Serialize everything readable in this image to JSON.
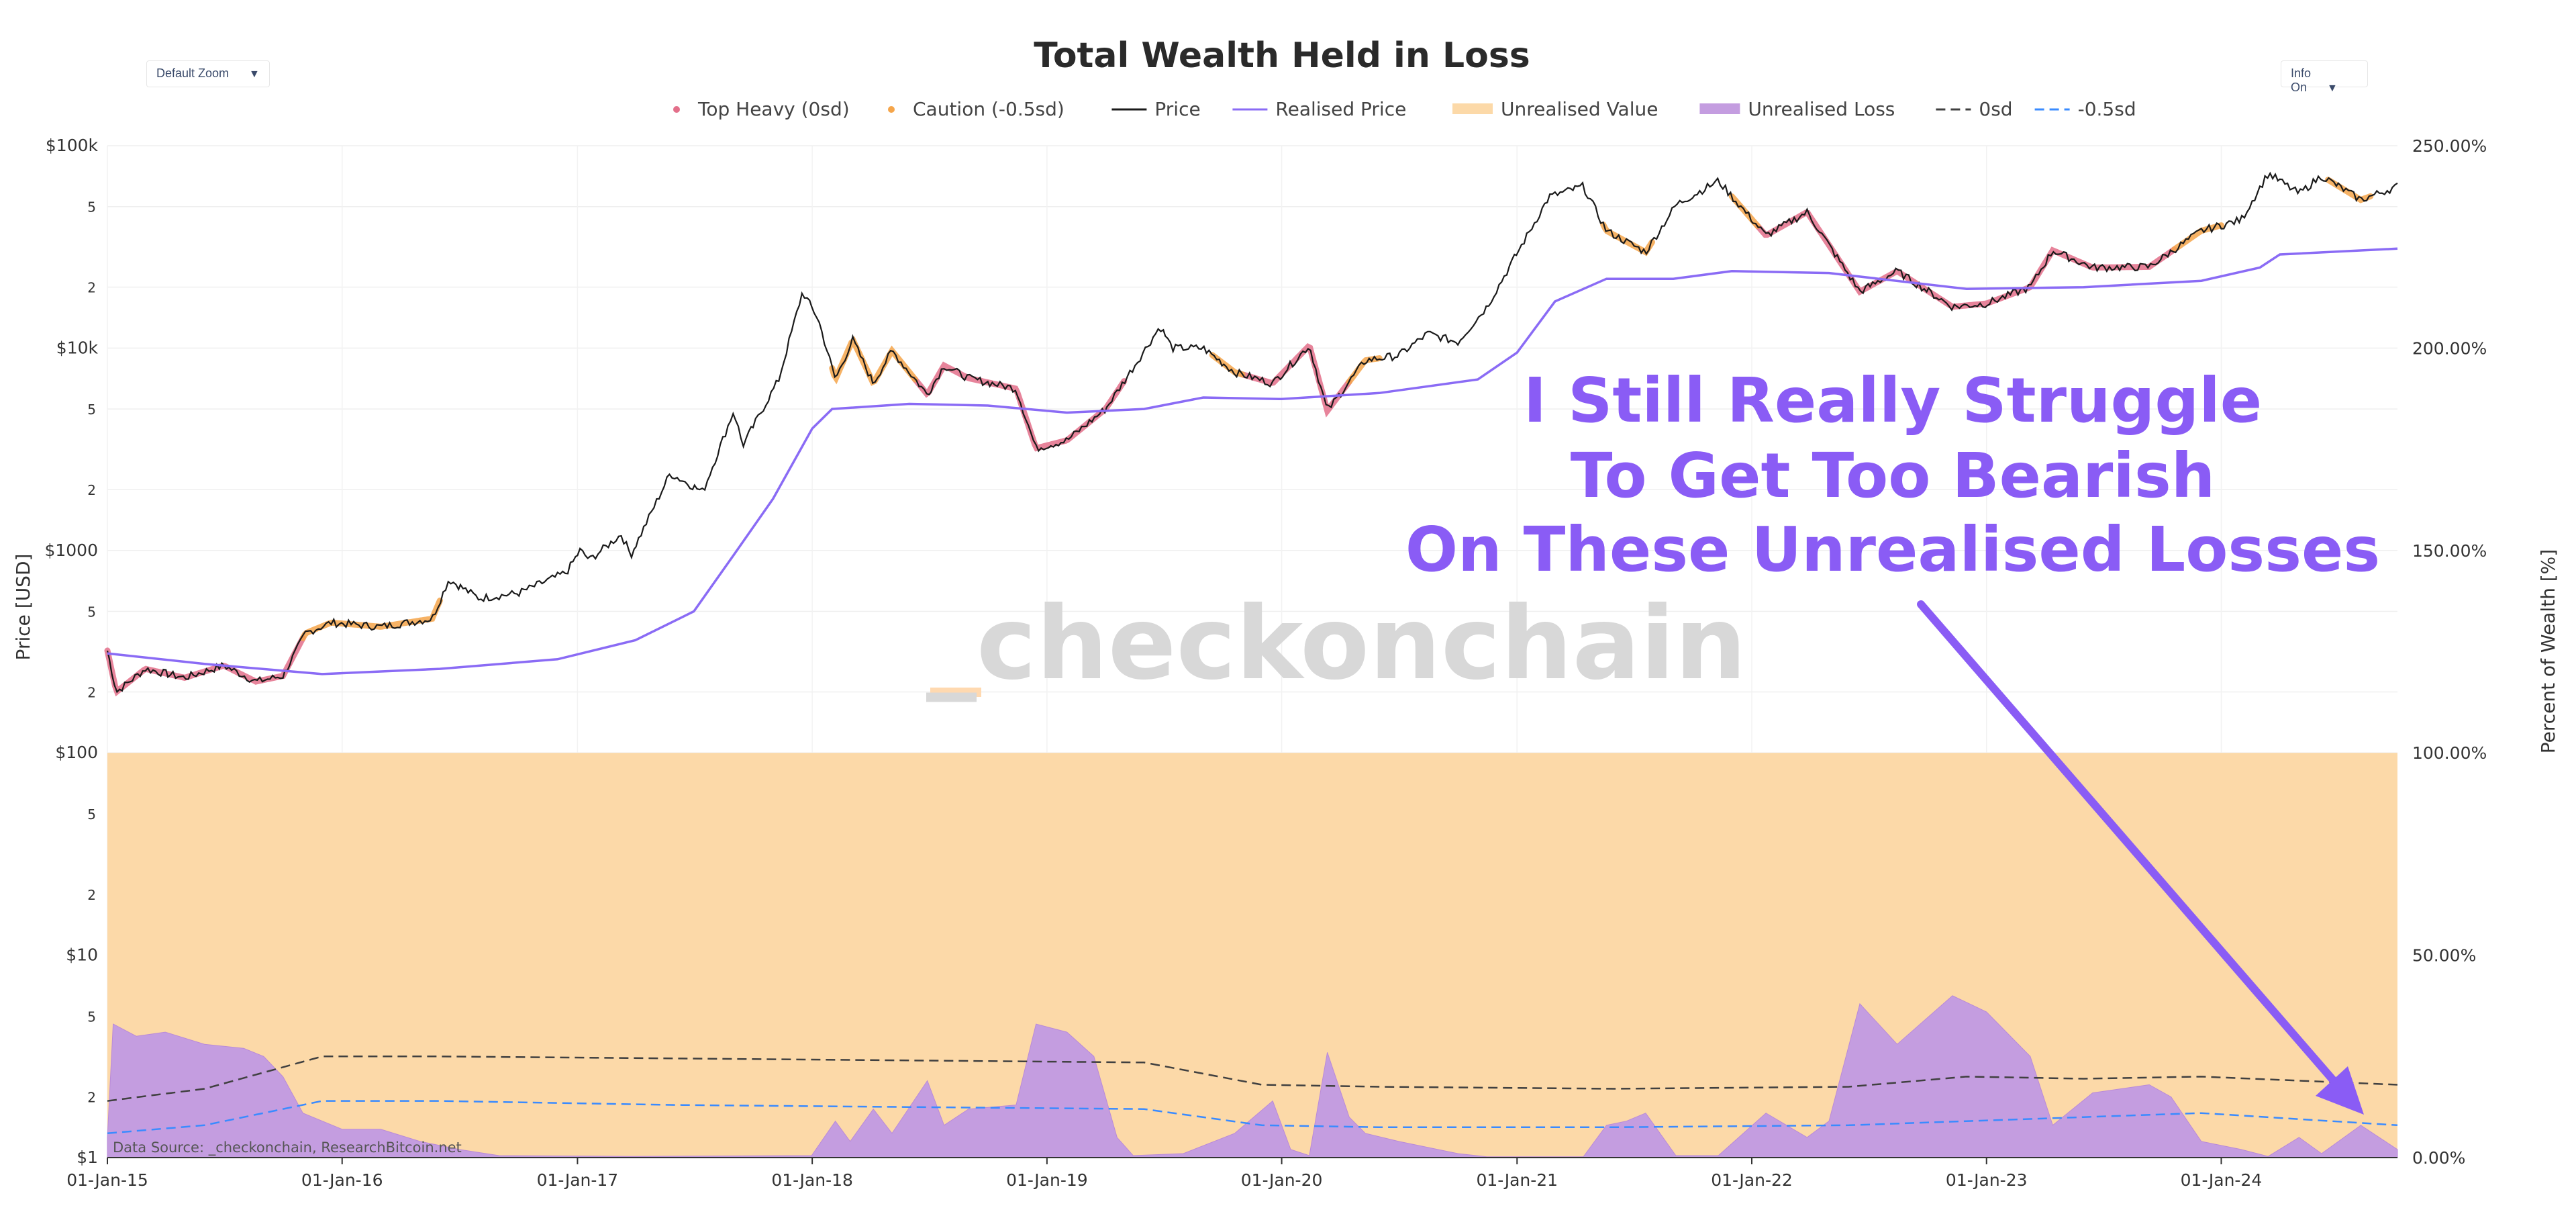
{
  "header": {
    "zoom_select": "Default Zoom",
    "info_select": "Info On"
  },
  "watermark": "_checkonchain",
  "annotation": {
    "lines": [
      "I Still Really Struggle",
      "To Get Too Bearish",
      "On These Unrealised Losses"
    ]
  },
  "source_note": "Data Source: _checkonchain, ResearchBitcoin.net",
  "colors": {
    "price": "#1a1a1a",
    "realised_price": "#8a6bf5",
    "unrealised_value": "#fcd9a8",
    "unrealised_loss": "#c49de0",
    "annotation": "#8a5cf5",
    "zero_sd": "#404040",
    "neg_half_sd": "#3a8bff",
    "top_heavy": "#e36f8a",
    "caution": "#f5a54a",
    "watermark": "#d8d8d8",
    "watermark_accent": "#ffd9b0"
  },
  "chart_data": {
    "type": "line",
    "title": "Total Wealth Held in Loss",
    "legend": {
      "position": "top-center",
      "entries": [
        {
          "label": "Top Heavy (0sd)",
          "style": "dot",
          "color": "#e36f8a"
        },
        {
          "label": "Caution (-0.5sd)",
          "style": "dot",
          "color": "#f5a54a"
        },
        {
          "label": "Price",
          "style": "line",
          "color": "#1a1a1a"
        },
        {
          "label": "Realised Price",
          "style": "line",
          "color": "#8a6bf5"
        },
        {
          "label": "Unrealised Value",
          "style": "band",
          "color": "#fcd9a8"
        },
        {
          "label": "Unrealised Loss",
          "style": "band",
          "color": "#c49de0"
        },
        {
          "label": "0sd",
          "style": "dash",
          "color": "#404040"
        },
        {
          "label": "-0.5sd",
          "style": "dash",
          "color": "#3a8bff"
        }
      ]
    },
    "x_ticks": [
      "01-Jan-15",
      "01-Jan-16",
      "01-Jan-17",
      "01-Jan-18",
      "01-Jan-19",
      "01-Jan-20",
      "01-Jan-21",
      "01-Jan-22",
      "01-Jan-23",
      "01-Jan-24"
    ],
    "x_range": [
      "2015-01-01",
      "2024-10-01"
    ],
    "y_left": {
      "label": "Price [USD]",
      "scale": "log",
      "range": [
        1,
        100000
      ],
      "ticks": [
        "$1",
        "2",
        "5",
        "$10",
        "2",
        "5",
        "$100",
        "2",
        "5",
        "$1000",
        "2",
        "5",
        "$10k",
        "2",
        "5",
        "$100k"
      ]
    },
    "y_right": {
      "label": "Percent of Wealth [%]",
      "range": [
        0,
        250
      ],
      "ticks": [
        "0.00%",
        "50.00%",
        "100.00%",
        "150.00%",
        "200.00%",
        "250.00%"
      ]
    },
    "grid": true,
    "series": [
      {
        "name": "Price",
        "axis": "left",
        "points": [
          [
            "2015-01-01",
            320
          ],
          [
            "2015-01-15",
            200
          ],
          [
            "2015-03-01",
            260
          ],
          [
            "2015-05-01",
            235
          ],
          [
            "2015-07-01",
            270
          ],
          [
            "2015-08-20",
            225
          ],
          [
            "2015-10-01",
            240
          ],
          [
            "2015-11-05",
            390
          ],
          [
            "2015-12-15",
            440
          ],
          [
            "2016-03-01",
            420
          ],
          [
            "2016-05-20",
            460
          ],
          [
            "2016-06-15",
            720
          ],
          [
            "2016-08-01",
            580
          ],
          [
            "2016-10-01",
            615
          ],
          [
            "2016-12-15",
            780
          ],
          [
            "2017-01-05",
            1000
          ],
          [
            "2017-01-20",
            900
          ],
          [
            "2017-03-10",
            1200
          ],
          [
            "2017-03-25",
            950
          ],
          [
            "2017-05-25",
            2400
          ],
          [
            "2017-07-15",
            1950
          ],
          [
            "2017-09-01",
            4900
          ],
          [
            "2017-09-15",
            3300
          ],
          [
            "2017-11-10",
            7000
          ],
          [
            "2017-12-17",
            19000
          ],
          [
            "2018-01-10",
            14000
          ],
          [
            "2018-02-06",
            7000
          ],
          [
            "2018-03-05",
            11000
          ],
          [
            "2018-04-06",
            6700
          ],
          [
            "2018-05-05",
            9700
          ],
          [
            "2018-06-29",
            5900
          ],
          [
            "2018-07-25",
            8200
          ],
          [
            "2018-09-01",
            7100
          ],
          [
            "2018-11-14",
            6300
          ],
          [
            "2018-12-15",
            3200
          ],
          [
            "2019-02-01",
            3500
          ],
          [
            "2019-04-02",
            5000
          ],
          [
            "2019-05-15",
            8000
          ],
          [
            "2019-06-26",
            12800
          ],
          [
            "2019-07-15",
            10000
          ],
          [
            "2019-09-01",
            10000
          ],
          [
            "2019-10-20",
            7600
          ],
          [
            "2019-12-18",
            6700
          ],
          [
            "2020-02-13",
            10300
          ],
          [
            "2020-03-12",
            4900
          ],
          [
            "2020-05-10",
            8700
          ],
          [
            "2020-07-01",
            9200
          ],
          [
            "2020-08-15",
            11800
          ],
          [
            "2020-10-01",
            10700
          ],
          [
            "2020-11-15",
            16000
          ],
          [
            "2020-12-31",
            29000
          ],
          [
            "2021-02-20",
            56000
          ],
          [
            "2021-04-14",
            63000
          ],
          [
            "2021-05-20",
            38000
          ],
          [
            "2021-07-20",
            29800
          ],
          [
            "2021-09-05",
            51000
          ],
          [
            "2021-11-10",
            67000
          ],
          [
            "2022-01-23",
            36000
          ],
          [
            "2022-03-28",
            47000
          ],
          [
            "2022-06-18",
            19000
          ],
          [
            "2022-08-15",
            24000
          ],
          [
            "2022-11-09",
            16000
          ],
          [
            "2023-01-01",
            16600
          ],
          [
            "2023-03-10",
            20000
          ],
          [
            "2023-04-14",
            30400
          ],
          [
            "2023-06-15",
            25000
          ],
          [
            "2023-09-11",
            25200
          ],
          [
            "2023-12-01",
            38000
          ],
          [
            "2024-02-01",
            43000
          ],
          [
            "2024-03-14",
            73000
          ],
          [
            "2024-05-01",
            58000
          ],
          [
            "2024-06-05",
            71000
          ],
          [
            "2024-08-05",
            54000
          ],
          [
            "2024-10-01",
            63000
          ]
        ]
      },
      {
        "name": "Realised Price",
        "axis": "left",
        "points": [
          [
            "2015-01-01",
            310
          ],
          [
            "2015-06-01",
            275
          ],
          [
            "2015-12-01",
            245
          ],
          [
            "2016-06-01",
            260
          ],
          [
            "2016-12-01",
            290
          ],
          [
            "2017-04-01",
            360
          ],
          [
            "2017-07-01",
            500
          ],
          [
            "2017-09-01",
            950
          ],
          [
            "2017-11-01",
            1800
          ],
          [
            "2018-01-01",
            4000
          ],
          [
            "2018-02-01",
            5000
          ],
          [
            "2018-06-01",
            5300
          ],
          [
            "2018-10-01",
            5200
          ],
          [
            "2019-02-01",
            4800
          ],
          [
            "2019-06-01",
            5000
          ],
          [
            "2019-09-01",
            5700
          ],
          [
            "2020-01-01",
            5600
          ],
          [
            "2020-06-01",
            6000
          ],
          [
            "2020-11-01",
            7000
          ],
          [
            "2021-01-01",
            9500
          ],
          [
            "2021-03-01",
            17000
          ],
          [
            "2021-05-20",
            22000
          ],
          [
            "2021-09-01",
            22000
          ],
          [
            "2021-12-01",
            24000
          ],
          [
            "2022-05-01",
            23500
          ],
          [
            "2022-12-01",
            19600
          ],
          [
            "2023-06-01",
            20000
          ],
          [
            "2023-12-01",
            21500
          ],
          [
            "2024-03-01",
            25000
          ],
          [
            "2024-04-01",
            29000
          ],
          [
            "2024-10-01",
            31000
          ]
        ]
      },
      {
        "name": "Unrealised Loss",
        "axis": "right",
        "points": [
          [
            "2015-01-01",
            5
          ],
          [
            "2015-01-10",
            33
          ],
          [
            "2015-02-15",
            30
          ],
          [
            "2015-04-01",
            31
          ],
          [
            "2015-06-01",
            28
          ],
          [
            "2015-08-01",
            27
          ],
          [
            "2015-09-01",
            25
          ],
          [
            "2015-10-01",
            20
          ],
          [
            "2015-11-01",
            11
          ],
          [
            "2016-01-01",
            7
          ],
          [
            "2016-03-01",
            7
          ],
          [
            "2016-05-01",
            4
          ],
          [
            "2016-07-01",
            2
          ],
          [
            "2016-09-01",
            0.5
          ],
          [
            "2017-03-25",
            0.3
          ],
          [
            "2017-12-31",
            0.5
          ],
          [
            "2018-02-06",
            9
          ],
          [
            "2018-03-01",
            4
          ],
          [
            "2018-04-06",
            12
          ],
          [
            "2018-05-05",
            6
          ],
          [
            "2018-06-29",
            19
          ],
          [
            "2018-07-25",
            8
          ],
          [
            "2018-09-01",
            12
          ],
          [
            "2018-11-14",
            13
          ],
          [
            "2018-12-15",
            33
          ],
          [
            "2019-02-01",
            31
          ],
          [
            "2019-03-15",
            25
          ],
          [
            "2019-04-20",
            5
          ],
          [
            "2019-05-15",
            0.5
          ],
          [
            "2019-08-01",
            1
          ],
          [
            "2019-10-20",
            6
          ],
          [
            "2019-12-18",
            14
          ],
          [
            "2020-01-15",
            2
          ],
          [
            "2020-02-13",
            0.5
          ],
          [
            "2020-03-12",
            26
          ],
          [
            "2020-04-15",
            10
          ],
          [
            "2020-05-10",
            6
          ],
          [
            "2020-07-01",
            4
          ],
          [
            "2020-10-01",
            1
          ],
          [
            "2020-11-15",
            0.2
          ],
          [
            "2021-04-14",
            0.2
          ],
          [
            "2021-05-20",
            8
          ],
          [
            "2021-06-20",
            9
          ],
          [
            "2021-07-20",
            11
          ],
          [
            "2021-09-05",
            0.5
          ],
          [
            "2021-11-10",
            0.5
          ],
          [
            "2022-01-23",
            11
          ],
          [
            "2022-03-28",
            5
          ],
          [
            "2022-05-01",
            9
          ],
          [
            "2022-06-18",
            38
          ],
          [
            "2022-08-15",
            28
          ],
          [
            "2022-11-09",
            40
          ],
          [
            "2023-01-01",
            36
          ],
          [
            "2023-03-10",
            25
          ],
          [
            "2023-04-14",
            8
          ],
          [
            "2023-06-15",
            16
          ],
          [
            "2023-09-11",
            18
          ],
          [
            "2023-10-15",
            15
          ],
          [
            "2023-12-01",
            4
          ],
          [
            "2024-02-01",
            2
          ],
          [
            "2024-03-14",
            0.3
          ],
          [
            "2024-05-01",
            5
          ],
          [
            "2024-06-05",
            1
          ],
          [
            "2024-08-05",
            8
          ],
          [
            "2024-10-01",
            2
          ]
        ]
      },
      {
        "name": "0sd",
        "axis": "right",
        "points": [
          [
            "2015-01-01",
            14
          ],
          [
            "2015-06-01",
            17
          ],
          [
            "2015-12-01",
            25
          ],
          [
            "2016-06-01",
            25
          ],
          [
            "2017-06-01",
            24.5
          ],
          [
            "2018-06-01",
            24
          ],
          [
            "2019-06-01",
            23.5
          ],
          [
            "2019-12-01",
            18
          ],
          [
            "2020-06-01",
            17.5
          ],
          [
            "2021-06-01",
            17
          ],
          [
            "2022-06-01",
            17.5
          ],
          [
            "2022-12-01",
            20
          ],
          [
            "2023-06-01",
            19.5
          ],
          [
            "2023-12-01",
            20
          ],
          [
            "2024-10-01",
            18
          ]
        ]
      },
      {
        "name": "-0.5sd",
        "axis": "right",
        "points": [
          [
            "2015-01-01",
            6
          ],
          [
            "2015-06-01",
            8
          ],
          [
            "2015-12-01",
            14
          ],
          [
            "2016-06-01",
            14
          ],
          [
            "2017-06-01",
            13
          ],
          [
            "2018-06-01",
            12.5
          ],
          [
            "2019-06-01",
            12
          ],
          [
            "2019-12-01",
            8
          ],
          [
            "2020-06-01",
            7.5
          ],
          [
            "2021-06-01",
            7.5
          ],
          [
            "2022-06-01",
            8
          ],
          [
            "2023-06-01",
            10
          ],
          [
            "2023-12-01",
            11
          ],
          [
            "2024-10-01",
            8
          ]
        ]
      }
    ],
    "regime_bands": [
      {
        "name": "Top Heavy (0sd)",
        "ranges": [
          [
            "2015-01-01",
            "2015-11-01"
          ],
          [
            "2018-06-10",
            "2019-05-01"
          ],
          [
            "2019-11-01",
            "2020-04-15"
          ],
          [
            "2022-01-10",
            "2023-10-20"
          ]
        ]
      },
      {
        "name": "Caution (-0.5sd)",
        "ranges": [
          [
            "2015-11-01",
            "2016-06-01"
          ],
          [
            "2018-02-01",
            "2018-06-10"
          ],
          [
            "2019-09-15",
            "2019-11-01"
          ],
          [
            "2020-04-15",
            "2020-06-01"
          ],
          [
            "2021-05-15",
            "2021-07-30"
          ],
          [
            "2021-12-01",
            "2022-01-10"
          ],
          [
            "2023-10-20",
            "2024-01-01"
          ],
          [
            "2024-06-15",
            "2024-08-20"
          ]
        ]
      }
    ]
  }
}
